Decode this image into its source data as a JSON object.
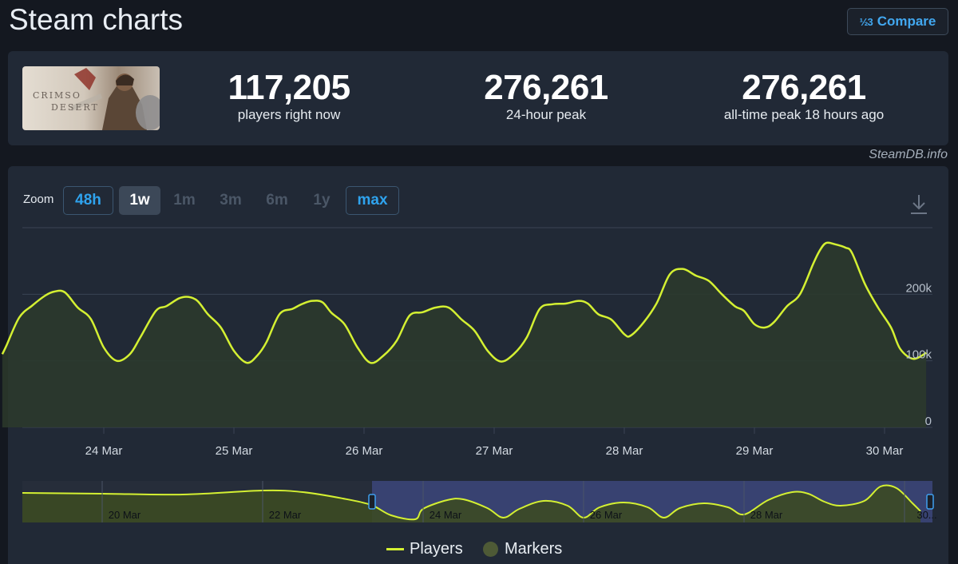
{
  "page": {
    "title": "Steam charts",
    "credit": "SteamDB.info"
  },
  "compare": {
    "icon": "½3",
    "label": "Compare"
  },
  "game": {
    "thumb_text": "CRIMSON DESERT"
  },
  "stats": [
    {
      "value": "117,205",
      "label": "players right now"
    },
    {
      "value": "276,261",
      "label": "24-hour peak"
    },
    {
      "value": "276,261",
      "label": "all-time peak 18 hours ago"
    }
  ],
  "zoom": {
    "label": "Zoom",
    "options": [
      "48h",
      "1w",
      "1m",
      "3m",
      "6m",
      "1y",
      "max"
    ],
    "active": "1w"
  },
  "legend": {
    "players": "Players",
    "markers": "Markers"
  },
  "colors": {
    "line": "#d4f032",
    "grid": "#3a4454",
    "navigator_mask": "#3b4578",
    "navigator_fill": "#3c4a24"
  },
  "chart_data": {
    "type": "line",
    "series": [
      {
        "name": "Players"
      }
    ],
    "ylim": [
      0,
      300000
    ],
    "yticks": [
      {
        "value": 0,
        "label": "0"
      },
      {
        "value": 100000,
        "label": "100k"
      },
      {
        "value": 200000,
        "label": "200k"
      }
    ],
    "xticks": [
      {
        "day": 1,
        "label": "24 Mar"
      },
      {
        "day": 2,
        "label": "25 Mar"
      },
      {
        "day": 3,
        "label": "26 Mar"
      },
      {
        "day": 4,
        "label": "27 Mar"
      },
      {
        "day": 5,
        "label": "28 Mar"
      },
      {
        "day": 6,
        "label": "29 Mar"
      },
      {
        "day": 7,
        "label": "30 Mar"
      }
    ],
    "points": [
      [
        0.22,
        110000
      ],
      [
        0.25,
        122000
      ],
      [
        0.35,
        165000
      ],
      [
        0.45,
        183000
      ],
      [
        0.55,
        198000
      ],
      [
        0.62,
        204000
      ],
      [
        0.7,
        203000
      ],
      [
        0.8,
        180000
      ],
      [
        0.9,
        163000
      ],
      [
        1.0,
        120000
      ],
      [
        1.1,
        100000
      ],
      [
        1.2,
        110000
      ],
      [
        1.28,
        135000
      ],
      [
        1.4,
        175000
      ],
      [
        1.48,
        182000
      ],
      [
        1.58,
        194000
      ],
      [
        1.65,
        196000
      ],
      [
        1.72,
        190000
      ],
      [
        1.8,
        170000
      ],
      [
        1.9,
        150000
      ],
      [
        2.0,
        115000
      ],
      [
        2.1,
        97000
      ],
      [
        2.18,
        108000
      ],
      [
        2.25,
        128000
      ],
      [
        2.35,
        170000
      ],
      [
        2.45,
        178000
      ],
      [
        2.52,
        185000
      ],
      [
        2.6,
        190000
      ],
      [
        2.68,
        188000
      ],
      [
        2.75,
        172000
      ],
      [
        2.85,
        155000
      ],
      [
        2.95,
        120000
      ],
      [
        3.05,
        97000
      ],
      [
        3.15,
        108000
      ],
      [
        3.25,
        130000
      ],
      [
        3.35,
        168000
      ],
      [
        3.45,
        173000
      ],
      [
        3.55,
        180000
      ],
      [
        3.65,
        180000
      ],
      [
        3.75,
        162000
      ],
      [
        3.85,
        145000
      ],
      [
        3.95,
        115000
      ],
      [
        4.05,
        99000
      ],
      [
        4.15,
        110000
      ],
      [
        4.25,
        135000
      ],
      [
        4.35,
        178000
      ],
      [
        4.45,
        185000
      ],
      [
        4.55,
        186000
      ],
      [
        4.65,
        190000
      ],
      [
        4.72,
        186000
      ],
      [
        4.8,
        170000
      ],
      [
        4.9,
        162000
      ],
      [
        5.0,
        140000
      ],
      [
        5.05,
        138000
      ],
      [
        5.15,
        158000
      ],
      [
        5.25,
        187000
      ],
      [
        5.35,
        230000
      ],
      [
        5.45,
        238000
      ],
      [
        5.55,
        228000
      ],
      [
        5.65,
        220000
      ],
      [
        5.75,
        200000
      ],
      [
        5.85,
        182000
      ],
      [
        5.92,
        175000
      ],
      [
        6.0,
        155000
      ],
      [
        6.08,
        150000
      ],
      [
        6.15,
        158000
      ],
      [
        6.25,
        182000
      ],
      [
        6.35,
        200000
      ],
      [
        6.45,
        245000
      ],
      [
        6.5,
        265000
      ],
      [
        6.55,
        277000
      ],
      [
        6.62,
        275000
      ],
      [
        6.7,
        270000
      ],
      [
        6.75,
        262000
      ],
      [
        6.85,
        215000
      ],
      [
        6.95,
        180000
      ],
      [
        7.05,
        150000
      ],
      [
        7.12,
        118000
      ],
      [
        7.22,
        103000
      ],
      [
        7.32,
        112000
      ]
    ]
  },
  "navigator": {
    "labels": [
      "20 Mar",
      "22 Mar",
      "24 Mar",
      "26 Mar",
      "28 Mar",
      "30..."
    ]
  }
}
